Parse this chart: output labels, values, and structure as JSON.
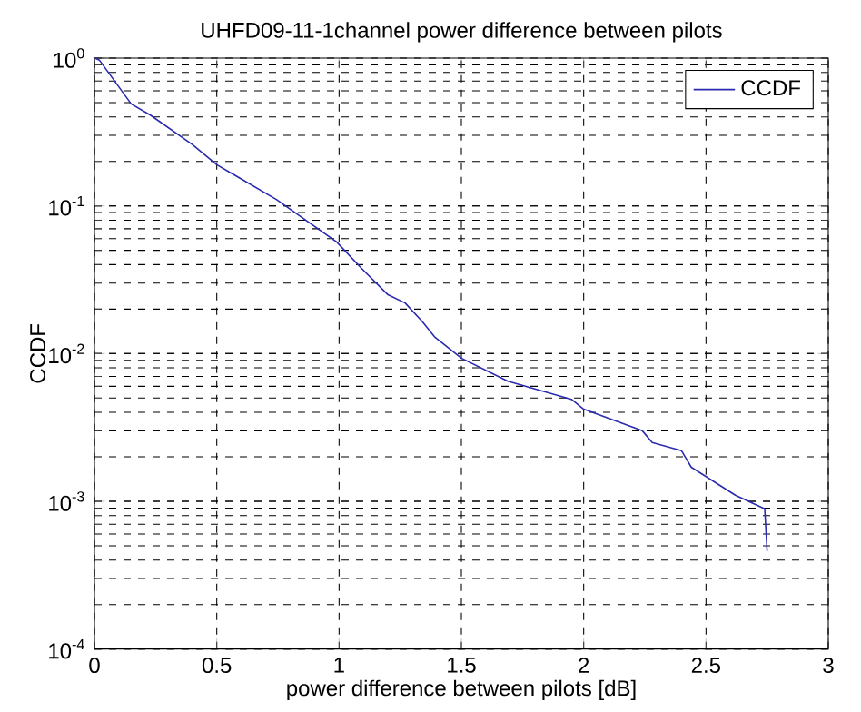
{
  "chart_data": {
    "type": "line",
    "title": "UHFD09-11-1channel power difference between pilots",
    "xlabel": "power difference between pilots [dB]",
    "ylabel": "CCDF",
    "log": "y",
    "grid": true,
    "legend": "top right",
    "marker": "none",
    "line_style": "solid",
    "xlim": [
      0,
      3
    ],
    "xticks": [
      0,
      0.5,
      1,
      1.5,
      2,
      2.5,
      3
    ],
    "ylim": [
      0.0001,
      1
    ],
    "yticks": [
      {
        "value": 0.0001,
        "label": "10$^{-4}$"
      },
      {
        "value": 0.001,
        "label": "10$^{-3}$"
      },
      {
        "value": 0.01,
        "label": "10$^{-2}$"
      },
      {
        "value": 0.1,
        "label": "10$^{-1}$"
      },
      {
        "value": 1,
        "label": "10$^{0}$"
      }
    ],
    "series": [
      {
        "name": "CCDF",
        "color": "#2b2bb0",
        "x": [
          0,
          0.02,
          0.15,
          0.23,
          0.4,
          0.5,
          0.745,
          0.99,
          1.09,
          1.2,
          1.27,
          1.34,
          1.39,
          1.5,
          1.69,
          1.95,
          2.0,
          2.24,
          2.28,
          2.4,
          2.44,
          2.62,
          2.74,
          2.75
        ],
        "values": [
          1,
          0.97,
          0.49,
          0.41,
          0.26,
          0.19,
          0.11,
          0.057,
          0.038,
          0.025,
          0.022,
          0.0165,
          0.013,
          0.0093,
          0.0065,
          0.0049,
          0.0042,
          0.003,
          0.0025,
          0.0022,
          0.0017,
          0.0011,
          0.00089,
          0.00046
        ]
      }
    ]
  }
}
